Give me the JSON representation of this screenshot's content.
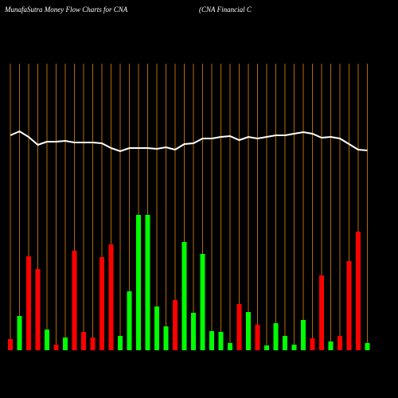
{
  "chart_data": {
    "type": "bar",
    "title": "MunafaSutra  Money Flow  Charts for CNA",
    "subtitle": "(CNA Financial C",
    "categories": [
      null,
      null,
      null,
      null,
      null,
      null,
      null,
      null,
      null,
      null,
      null,
      null,
      null,
      null,
      null,
      null,
      null,
      null,
      null,
      null,
      null,
      null,
      null,
      null,
      null,
      null,
      null,
      null,
      null,
      null,
      null,
      null,
      null,
      null,
      null,
      null,
      null,
      null,
      null,
      null
    ],
    "values": [
      14,
      43,
      118,
      102,
      26,
      7,
      16,
      125,
      23,
      16,
      117,
      133,
      18,
      74,
      170,
      170,
      55,
      30,
      63,
      136,
      47,
      121,
      24,
      23,
      9,
      58,
      48,
      32,
      6,
      34,
      18,
      7,
      38,
      15,
      94,
      11,
      18,
      112,
      149,
      9
    ],
    "colors": [
      "#ff0000",
      "#00ff00",
      "#ff0000",
      "#ff0000",
      "#00ff00",
      "#ff0000",
      "#00ff00",
      "#ff0000",
      "#ff0000",
      "#ff0000",
      "#ff0000",
      "#ff0000",
      "#00ff00",
      "#00ff00",
      "#00ff00",
      "#00ff00",
      "#00ff00",
      "#00ff00",
      "#ff0000",
      "#00ff00",
      "#00ff00",
      "#00ff00",
      "#00ff00",
      "#00ff00",
      "#00ff00",
      "#ff0000",
      "#00ff00",
      "#ff0000",
      "#00ff00",
      "#00ff00",
      "#00ff00",
      "#00ff00",
      "#00ff00",
      "#ff0000",
      "#ff0000",
      "#00ff00",
      "#ff0000",
      "#ff0000",
      "#ff0000",
      "#00ff00"
    ],
    "line": {
      "color": "#ffffff",
      "values": [
        270,
        275,
        268,
        258,
        262,
        262,
        263,
        261,
        261,
        261,
        260,
        254,
        250,
        254,
        254,
        254,
        253,
        255,
        252,
        259,
        260,
        266,
        266,
        268,
        269,
        264,
        268,
        266,
        268,
        270,
        270,
        272,
        274,
        272,
        267,
        268,
        266,
        259,
        252,
        251
      ]
    },
    "ylim": [
      0,
      440
    ],
    "grid_color": "#b36b00"
  }
}
